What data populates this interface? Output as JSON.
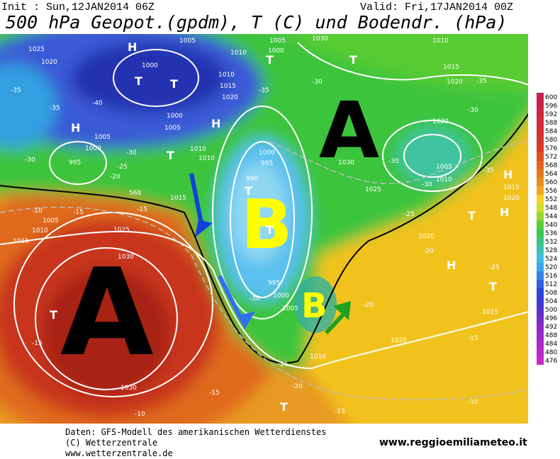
{
  "header": {
    "init": "Init : Sun,12JAN2014 06Z",
    "valid": "Valid: Fri,17JAN2014 00Z",
    "title": "500 hPa Geopot.(gpdm), T (C) und Bodendr. (hPa)"
  },
  "map": {
    "big_letters": [
      "A",
      "B",
      "A",
      "B"
    ],
    "labels": [
      "1025",
      "1020",
      "1005",
      "1010",
      "1000",
      "1005",
      "1030",
      "1010",
      "1015",
      "1020",
      "1000",
      "1010",
      "1015",
      "1020",
      "1005",
      "1000",
      "995",
      "1000",
      "1005",
      "1010",
      "1010",
      "1000",
      "995",
      "990",
      "1030",
      "1025",
      "1020",
      "1005",
      "1010",
      "1015",
      "1020",
      "1015",
      "1005",
      "1010",
      "1015",
      "1025",
      "1030",
      "995",
      "1000",
      "1005",
      "1010",
      "1020",
      "1015",
      "1030",
      "1020",
      "-35",
      "-40",
      "-35",
      "-35",
      "-30",
      "-35",
      "-30",
      "-30",
      "-30",
      "-25",
      "-20",
      "-30",
      "-25",
      "-10",
      "-15",
      "-15",
      "-20",
      "-25",
      "-30",
      "-20",
      "-15",
      "-15",
      "-15",
      "-20",
      "-25",
      "-10",
      "-15",
      "-10",
      "-30",
      "-35",
      "568",
      "H",
      "H",
      "T",
      "T",
      "T",
      "H",
      "T",
      "T",
      "T",
      "T",
      "H",
      "T",
      "T",
      "H",
      "T",
      "T",
      "H"
    ]
  },
  "colorbar": {
    "labels": [
      600,
      596,
      592,
      588,
      584,
      580,
      576,
      572,
      568,
      564,
      560,
      556,
      552,
      548,
      544,
      540,
      536,
      532,
      528,
      524,
      520,
      516,
      512,
      508,
      504,
      500,
      496,
      492,
      488,
      484,
      480,
      476
    ]
  },
  "footer": {
    "source": "Daten: GFS-Modell des amerikanischen Wetterdienstes",
    "copyright": "(C) Wetterzentrale",
    "url": "www.wetterzentrale.de",
    "site": "www.reggioemiliameteo.it"
  }
}
